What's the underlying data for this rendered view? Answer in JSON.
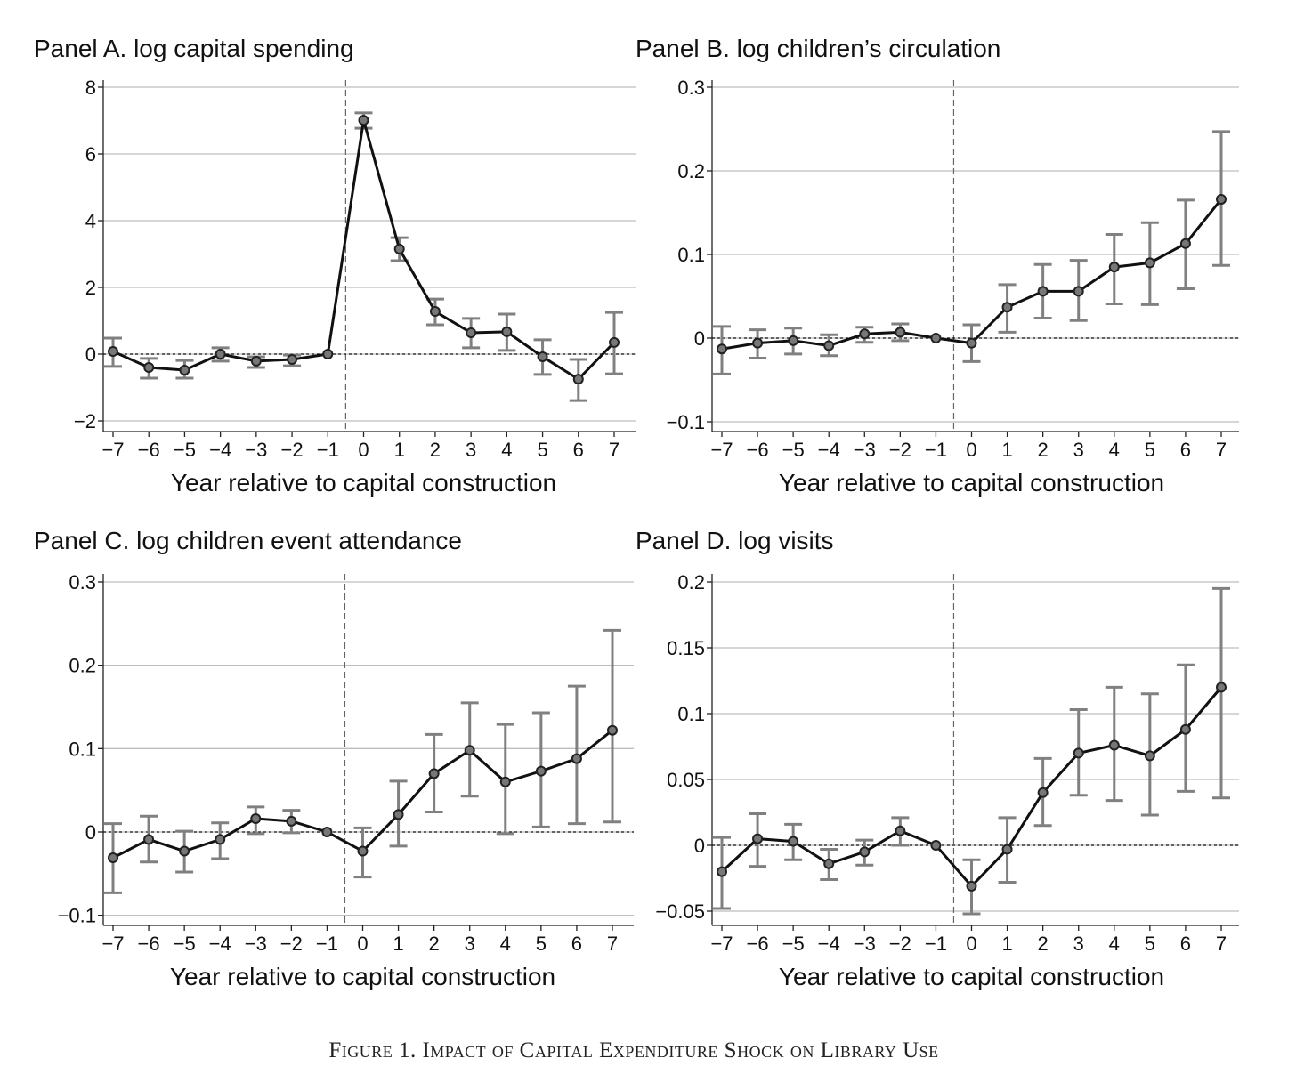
{
  "figure_caption": "Figure 1. Impact of Capital Expenditure Shock on Library Use",
  "chart_data": [
    {
      "type": "line",
      "title": "Panel A. log capital spending",
      "xlabel": "Year relative to capital construction",
      "ylabel": "",
      "x": [
        -7,
        -6,
        -5,
        -4,
        -3,
        -2,
        -1,
        0,
        1,
        2,
        3,
        4,
        5,
        6,
        7
      ],
      "x_tick_labels": [
        "−7",
        "−6",
        "−5",
        "−4",
        "−3",
        "−2",
        "−1",
        "0",
        "1",
        "2",
        "3",
        "4",
        "5",
        "6",
        "7"
      ],
      "y_ticks": [
        -2,
        0,
        2,
        4,
        6,
        8
      ],
      "y_tick_labels": [
        "−2",
        "0",
        "2",
        "4",
        "6",
        "8"
      ],
      "ylim": [
        -2.3,
        8.2
      ],
      "grid": true,
      "reference_line_x": -0.5,
      "reference_line_y": 0,
      "series": [
        {
          "name": "estimate",
          "values": [
            0.08,
            -0.4,
            -0.48,
            0.0,
            -0.21,
            -0.16,
            0,
            7.01,
            3.15,
            1.28,
            0.64,
            0.67,
            -0.08,
            -0.75,
            0.35
          ],
          "ci_low": [
            -0.37,
            -0.72,
            -0.72,
            -0.21,
            -0.4,
            -0.35,
            0,
            6.77,
            2.8,
            0.88,
            0.19,
            0.11,
            -0.61,
            -1.39,
            -0.59
          ],
          "ci_high": [
            0.48,
            -0.13,
            -0.19,
            0.19,
            -0.08,
            -0.03,
            0,
            7.23,
            3.49,
            1.65,
            1.07,
            1.2,
            0.43,
            -0.16,
            1.25
          ]
        }
      ]
    },
    {
      "type": "line",
      "title": "Panel B. log children’s circulation",
      "xlabel": "Year relative to capital construction",
      "ylabel": "",
      "x": [
        -7,
        -6,
        -5,
        -4,
        -3,
        -2,
        -1,
        0,
        1,
        2,
        3,
        4,
        5,
        6,
        7
      ],
      "x_tick_labels": [
        "−7",
        "−6",
        "−5",
        "−4",
        "−3",
        "−2",
        "−1",
        "0",
        "1",
        "2",
        "3",
        "4",
        "5",
        "6",
        "7"
      ],
      "y_ticks": [
        -0.1,
        0,
        0.1,
        0.2,
        0.3
      ],
      "y_tick_labels": [
        "−0.1",
        "0",
        "0.1",
        "0.2",
        "0.3"
      ],
      "ylim": [
        -0.11,
        0.31
      ],
      "grid": true,
      "reference_line_x": -0.5,
      "reference_line_y": 0,
      "series": [
        {
          "name": "estimate",
          "values": [
            -0.013,
            -0.006,
            -0.003,
            -0.009,
            0.005,
            0.007,
            0,
            -0.006,
            0.037,
            0.056,
            0.056,
            0.085,
            0.09,
            0.113,
            0.166
          ],
          "ci_low": [
            -0.043,
            -0.024,
            -0.019,
            -0.021,
            -0.005,
            -0.003,
            0,
            -0.028,
            0.007,
            0.024,
            0.021,
            0.041,
            0.04,
            0.059,
            0.087
          ],
          "ci_high": [
            0.014,
            0.01,
            0.012,
            0.004,
            0.013,
            0.017,
            0,
            0.016,
            0.064,
            0.088,
            0.093,
            0.124,
            0.138,
            0.165,
            0.247
          ]
        }
      ]
    },
    {
      "type": "line",
      "title": "Panel C. log children event attendance",
      "xlabel": "Year relative to capital construction",
      "ylabel": "",
      "x": [
        -7,
        -6,
        -5,
        -4,
        -3,
        -2,
        -1,
        0,
        1,
        2,
        3,
        4,
        5,
        6,
        7
      ],
      "x_tick_labels": [
        "−7",
        "−6",
        "−5",
        "−4",
        "−3",
        "−2",
        "−1",
        "0",
        "1",
        "2",
        "3",
        "4",
        "5",
        "6",
        "7"
      ],
      "y_ticks": [
        -0.1,
        0,
        0.1,
        0.2,
        0.3
      ],
      "y_tick_labels": [
        "−0.1",
        "0",
        "0.1",
        "0.2",
        "0.3"
      ],
      "ylim": [
        -0.11,
        0.31
      ],
      "grid": true,
      "reference_line_x": -0.5,
      "reference_line_y": 0,
      "series": [
        {
          "name": "estimate",
          "values": [
            -0.031,
            -0.009,
            -0.023,
            -0.009,
            0.016,
            0.013,
            0,
            -0.023,
            0.021,
            0.07,
            0.098,
            0.06,
            0.073,
            0.088,
            0.122
          ],
          "ci_low": [
            -0.073,
            -0.036,
            -0.048,
            -0.032,
            -0.002,
            -0.001,
            0,
            -0.054,
            -0.017,
            0.024,
            0.043,
            -0.002,
            0.006,
            0.01,
            0.012
          ],
          "ci_high": [
            0.01,
            0.019,
            0.001,
            0.011,
            0.03,
            0.026,
            0,
            0.005,
            0.061,
            0.117,
            0.155,
            0.129,
            0.143,
            0.175,
            0.242
          ]
        }
      ]
    },
    {
      "type": "line",
      "title": "Panel D. log visits",
      "xlabel": "Year relative to capital construction",
      "ylabel": "",
      "x": [
        -7,
        -6,
        -5,
        -4,
        -3,
        -2,
        -1,
        0,
        1,
        2,
        3,
        4,
        5,
        6,
        7
      ],
      "x_tick_labels": [
        "−7",
        "−6",
        "−5",
        "−4",
        "−3",
        "−2",
        "−1",
        "0",
        "1",
        "2",
        "3",
        "4",
        "5",
        "6",
        "7"
      ],
      "y_ticks": [
        -0.05,
        0,
        0.05,
        0.1,
        0.15,
        0.2
      ],
      "y_tick_labels": [
        "−0.05",
        "0",
        "0.05",
        "0.1",
        "0.15",
        "0.2"
      ],
      "ylim": [
        -0.06,
        0.205
      ],
      "grid": true,
      "reference_line_x": -0.5,
      "reference_line_y": 0,
      "series": [
        {
          "name": "estimate",
          "values": [
            -0.02,
            0.005,
            0.003,
            -0.014,
            -0.005,
            0.011,
            0,
            -0.031,
            -0.003,
            0.04,
            0.07,
            0.076,
            0.068,
            0.088,
            0.12
          ],
          "ci_low": [
            -0.048,
            -0.016,
            -0.011,
            -0.026,
            -0.015,
            0.0,
            0,
            -0.052,
            -0.028,
            0.015,
            0.038,
            0.034,
            0.023,
            0.041,
            0.036
          ],
          "ci_high": [
            0.006,
            0.024,
            0.016,
            -0.003,
            0.004,
            0.021,
            0,
            -0.011,
            0.021,
            0.066,
            0.103,
            0.12,
            0.115,
            0.137,
            0.195
          ]
        }
      ]
    }
  ]
}
